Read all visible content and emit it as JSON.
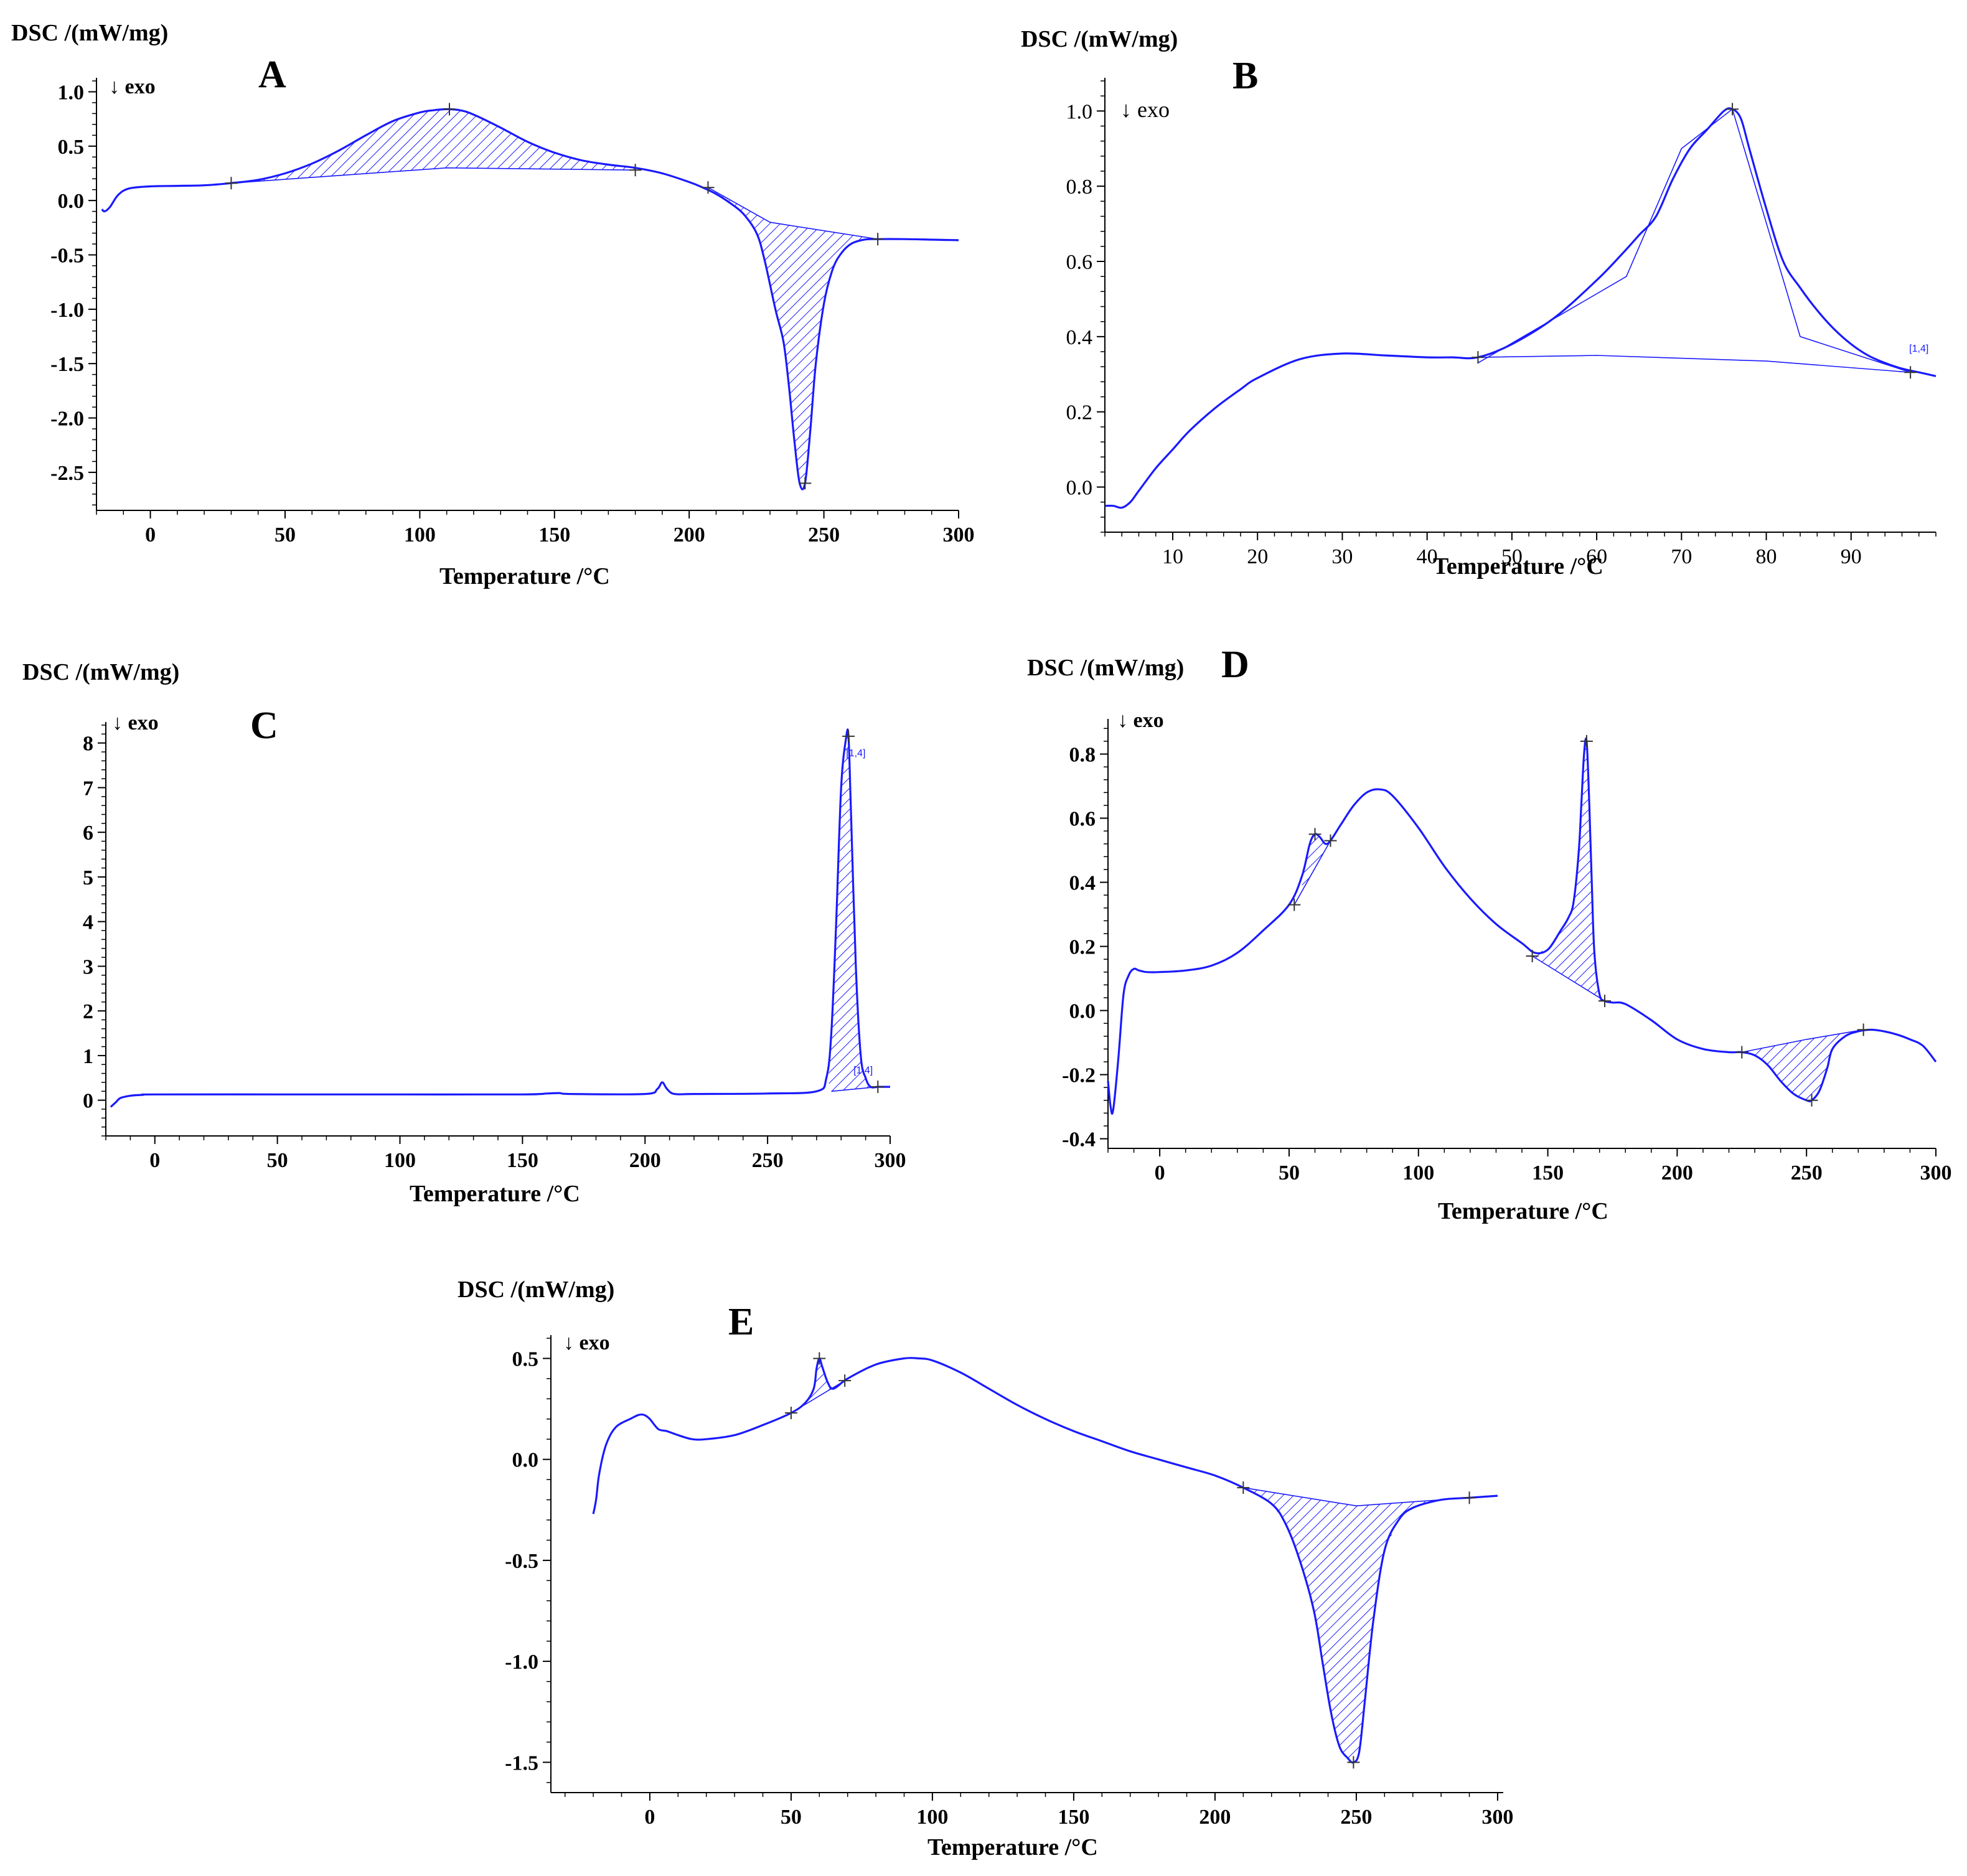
{
  "figure": {
    "colors": {
      "curve": "#1a1aff",
      "hatch": "#1a1aff",
      "axis": "#000000"
    },
    "exo_glyph": "↓"
  },
  "chart_data": [
    {
      "panel": "A",
      "type": "line",
      "title": "",
      "ylabel": "DSC /(mW/mg)",
      "xlabel": "Temperature /°C",
      "exo_label": "exo",
      "xlim": [
        -20,
        300
      ],
      "ylim": [
        -2.85,
        1.1
      ],
      "xticks": [
        "0",
        "50",
        "100",
        "150",
        "200",
        "250",
        "300"
      ],
      "xtick_values": [
        0,
        50,
        100,
        150,
        200,
        250,
        300
      ],
      "yticks": [
        "1.0",
        "0.5",
        "0.0",
        "-0.5",
        "-1.0",
        "-1.5",
        "-2.0",
        "-2.5"
      ],
      "ytick_values": [
        1.0,
        0.5,
        0.0,
        -0.5,
        -1.0,
        -1.5,
        -2.0,
        -2.5
      ],
      "series": [
        {
          "name": "DSC",
          "x": [
            -18,
            -17,
            -15,
            -12,
            -8,
            0,
            10,
            20,
            30,
            40,
            50,
            60,
            70,
            80,
            90,
            100,
            105,
            110,
            115,
            120,
            130,
            140,
            150,
            160,
            170,
            180,
            190,
            200,
            205,
            210,
            215,
            220,
            225,
            228,
            232,
            235,
            237,
            239,
            241,
            243,
            245,
            247,
            250,
            253,
            256,
            260,
            265,
            270,
            280,
            290,
            300
          ],
          "y": [
            -0.08,
            -0.1,
            -0.06,
            0.05,
            0.11,
            0.13,
            0.135,
            0.14,
            0.16,
            0.19,
            0.25,
            0.34,
            0.46,
            0.6,
            0.73,
            0.81,
            0.83,
            0.84,
            0.83,
            0.79,
            0.67,
            0.54,
            0.44,
            0.37,
            0.33,
            0.3,
            0.25,
            0.17,
            0.12,
            0.06,
            -0.02,
            -0.12,
            -0.3,
            -0.55,
            -1.0,
            -1.3,
            -1.7,
            -2.2,
            -2.6,
            -2.6,
            -2.1,
            -1.5,
            -0.95,
            -0.65,
            -0.5,
            -0.4,
            -0.36,
            -0.355,
            -0.355,
            -0.36,
            -0.365
          ]
        }
      ],
      "baselines": [
        {
          "x": [
            30,
            110,
            180
          ],
          "y": [
            0.16,
            0.3,
            0.28
          ]
        },
        {
          "x": [
            207,
            230,
            270
          ],
          "y": [
            0.12,
            -0.2,
            -0.355
          ]
        }
      ],
      "markers": [
        {
          "x": 30,
          "y": 0.16
        },
        {
          "x": 111,
          "y": 0.84
        },
        {
          "x": 180,
          "y": 0.28
        },
        {
          "x": 207,
          "y": 0.12
        },
        {
          "x": 243,
          "y": -2.6
        },
        {
          "x": 270,
          "y": -0.355
        }
      ],
      "shaded": [
        {
          "from": 30,
          "to": 180,
          "baseline": 0
        },
        {
          "from": 207,
          "to": 270,
          "baseline": 1
        }
      ],
      "annotations": []
    },
    {
      "panel": "B",
      "type": "line",
      "title": "",
      "ylabel": "DSC /(mW/mg)",
      "xlabel": "Temperature /°C",
      "exo_label": "exo",
      "xlim": [
        2,
        100
      ],
      "ylim": [
        -0.12,
        1.08
      ],
      "xticks": [
        "10",
        "20",
        "30",
        "40",
        "50",
        "60",
        "70",
        "80",
        "90"
      ],
      "xtick_values": [
        10,
        20,
        30,
        40,
        50,
        60,
        70,
        80,
        90
      ],
      "yticks": [
        "1.0",
        "0.8",
        "0.6",
        "0.4",
        "0.2",
        "0.0"
      ],
      "ytick_values": [
        1.0,
        0.8,
        0.6,
        0.4,
        0.2,
        0.0
      ],
      "series": [
        {
          "name": "DSC",
          "x": [
            2,
            3,
            4,
            5,
            6,
            8,
            10,
            12,
            15,
            18,
            20,
            25,
            30,
            35,
            40,
            43,
            46,
            50,
            55,
            60,
            63,
            65,
            67,
            69,
            71,
            73,
            75,
            76,
            77,
            78,
            80,
            82,
            84,
            86,
            88,
            90,
            92,
            94,
            96,
            98,
            100
          ],
          "y": [
            -0.05,
            -0.05,
            -0.055,
            -0.04,
            -0.01,
            0.05,
            0.1,
            0.15,
            0.21,
            0.26,
            0.29,
            0.34,
            0.355,
            0.35,
            0.345,
            0.345,
            0.345,
            0.38,
            0.45,
            0.55,
            0.62,
            0.67,
            0.72,
            0.82,
            0.9,
            0.95,
            1.0,
            1.005,
            0.98,
            0.9,
            0.74,
            0.6,
            0.53,
            0.47,
            0.42,
            0.38,
            0.35,
            0.33,
            0.315,
            0.305,
            0.295
          ]
        }
      ],
      "baselines": [
        {
          "x": [
            46,
            60,
            80,
            97
          ],
          "y": [
            0.345,
            0.35,
            0.335,
            0.305
          ]
        },
        {
          "x": [
            46,
            63.5,
            70,
            76,
            84,
            97
          ],
          "y": [
            0.33,
            0.56,
            0.9,
            1.005,
            0.4,
            0.305
          ]
        }
      ],
      "markers": [
        {
          "x": 46,
          "y": 0.345
        },
        {
          "x": 76,
          "y": 1.005
        },
        {
          "x": 97,
          "y": 0.305
        }
      ],
      "shaded": [],
      "annotations": [
        {
          "x": 98,
          "y": 0.36,
          "text": "[1,4]"
        }
      ]
    },
    {
      "panel": "C",
      "type": "line",
      "title": "",
      "ylabel": "DSC /(mW/mg)",
      "xlabel": "Temperature /°C",
      "exo_label": "exo",
      "xlim": [
        -20,
        300
      ],
      "ylim": [
        -0.8,
        8.4
      ],
      "xticks": [
        "0",
        "50",
        "100",
        "150",
        "200",
        "250",
        "300"
      ],
      "xtick_values": [
        0,
        50,
        100,
        150,
        200,
        250,
        300
      ],
      "yticks": [
        "8",
        "7",
        "6",
        "5",
        "4",
        "3",
        "2",
        "1",
        "0"
      ],
      "ytick_values": [
        8,
        7,
        6,
        5,
        4,
        3,
        2,
        1,
        0
      ],
      "series": [
        {
          "name": "DSC",
          "x": [
            -18,
            -16,
            -14,
            -10,
            -5,
            0,
            50,
            100,
            150,
            160,
            165,
            170,
            200,
            205,
            207,
            209,
            212,
            220,
            250,
            270,
            274,
            276,
            278,
            280,
            282,
            283,
            284,
            286,
            288,
            290,
            292,
            295,
            298,
            300
          ],
          "y": [
            -0.15,
            -0.05,
            0.05,
            0.1,
            0.12,
            0.13,
            0.13,
            0.13,
            0.13,
            0.15,
            0.16,
            0.14,
            0.14,
            0.25,
            0.4,
            0.25,
            0.14,
            0.14,
            0.15,
            0.2,
            0.5,
            1.5,
            4.0,
            7.0,
            8.1,
            8.15,
            6.5,
            3.0,
            1.0,
            0.5,
            0.3,
            0.3,
            0.3,
            0.3
          ]
        }
      ],
      "baselines": [
        {
          "x": [
            276,
            295
          ],
          "y": [
            0.2,
            0.3
          ]
        }
      ],
      "markers": [
        {
          "x": 283,
          "y": 8.15
        },
        {
          "x": 295,
          "y": 0.3
        }
      ],
      "shaded": [
        {
          "from": 275,
          "to": 294,
          "baseline": 0
        }
      ],
      "annotations": [
        {
          "x": 286,
          "y": 7.7,
          "text": "[1,4]"
        },
        {
          "x": 289,
          "y": 0.6,
          "text": "[1,4]"
        }
      ]
    },
    {
      "panel": "D",
      "type": "line",
      "title": "",
      "ylabel": "DSC /(mW/mg)",
      "xlabel": "Temperature /°C",
      "exo_label": "exo",
      "xlim": [
        -20,
        300
      ],
      "ylim": [
        -0.43,
        0.9
      ],
      "xticks": [
        "0",
        "50",
        "100",
        "150",
        "200",
        "250",
        "300"
      ],
      "xtick_values": [
        0,
        50,
        100,
        150,
        200,
        250,
        300
      ],
      "yticks": [
        "0.8",
        "0.6",
        "0.4",
        "0.2",
        "0.0",
        "-0.2",
        "-0.4"
      ],
      "ytick_values": [
        0.8,
        0.6,
        0.4,
        0.2,
        0.0,
        -0.2,
        -0.4
      ],
      "series": [
        {
          "name": "DSC",
          "x": [
            -20,
            -19,
            -18,
            -16,
            -14,
            -12,
            -10,
            -8,
            -5,
            0,
            10,
            20,
            30,
            40,
            50,
            55,
            58,
            60,
            62,
            64,
            66,
            70,
            75,
            80,
            85,
            90,
            100,
            110,
            120,
            130,
            140,
            145,
            150,
            155,
            158,
            160,
            162,
            163,
            164,
            165,
            166,
            167,
            168,
            170,
            172,
            175,
            180,
            190,
            200,
            210,
            220,
            225,
            230,
            235,
            240,
            245,
            250,
            252,
            255,
            258,
            260,
            265,
            270,
            275,
            280,
            285,
            290,
            295,
            300
          ],
          "y": [
            -0.22,
            -0.3,
            -0.31,
            -0.15,
            0.05,
            0.11,
            0.13,
            0.125,
            0.12,
            0.12,
            0.125,
            0.14,
            0.18,
            0.25,
            0.33,
            0.42,
            0.52,
            0.55,
            0.54,
            0.52,
            0.53,
            0.58,
            0.64,
            0.68,
            0.69,
            0.67,
            0.57,
            0.45,
            0.35,
            0.27,
            0.21,
            0.18,
            0.19,
            0.25,
            0.29,
            0.34,
            0.5,
            0.65,
            0.8,
            0.84,
            0.65,
            0.4,
            0.18,
            0.05,
            0.03,
            0.025,
            0.02,
            -0.03,
            -0.09,
            -0.12,
            -0.13,
            -0.13,
            -0.14,
            -0.17,
            -0.22,
            -0.26,
            -0.28,
            -0.28,
            -0.25,
            -0.18,
            -0.12,
            -0.08,
            -0.065,
            -0.06,
            -0.065,
            -0.075,
            -0.09,
            -0.11,
            -0.16
          ]
        }
      ],
      "baselines": [
        {
          "x": [
            52,
            66
          ],
          "y": [
            0.33,
            0.53
          ]
        },
        {
          "x": [
            144,
            172
          ],
          "y": [
            0.17,
            0.03
          ]
        },
        {
          "x": [
            225,
            250,
            272
          ],
          "y": [
            -0.13,
            -0.09,
            -0.06
          ]
        }
      ],
      "markers": [
        {
          "x": 52,
          "y": 0.33
        },
        {
          "x": 60,
          "y": 0.55
        },
        {
          "x": 66,
          "y": 0.53
        },
        {
          "x": 144,
          "y": 0.17
        },
        {
          "x": 165,
          "y": 0.84
        },
        {
          "x": 172,
          "y": 0.03
        },
        {
          "x": 225,
          "y": -0.13
        },
        {
          "x": 252,
          "y": -0.28
        },
        {
          "x": 272,
          "y": -0.06
        }
      ],
      "shaded": [
        {
          "from": 55,
          "to": 66,
          "baseline": 0
        },
        {
          "from": 144,
          "to": 172,
          "baseline": 1
        },
        {
          "from": 225,
          "to": 272,
          "baseline": 2
        }
      ],
      "annotations": []
    },
    {
      "panel": "E",
      "type": "line",
      "title": "",
      "ylabel": "DSC /(mW/mg)",
      "xlabel": "Temperature /°C",
      "exo_label": "exo",
      "xlim": [
        -35,
        302
      ],
      "ylim": [
        -1.65,
        0.6
      ],
      "xticks": [
        "0",
        "50",
        "100",
        "150",
        "200",
        "250",
        "300"
      ],
      "xtick_values": [
        0,
        50,
        100,
        150,
        200,
        250,
        300
      ],
      "yticks": [
        "0.5",
        "0.0",
        "-0.5",
        "-1.0",
        "-1.5"
      ],
      "ytick_values": [
        0.5,
        0.0,
        -0.5,
        -1.0,
        -1.5
      ],
      "series": [
        {
          "name": "DSC",
          "x": [
            -20,
            -19,
            -18,
            -16,
            -14,
            -12,
            -10,
            -7,
            -4,
            -2,
            0,
            3,
            6,
            10,
            15,
            20,
            30,
            40,
            50,
            55,
            58,
            59,
            60,
            61,
            63,
            65,
            70,
            80,
            90,
            95,
            100,
            110,
            120,
            130,
            140,
            150,
            160,
            170,
            180,
            190,
            200,
            210,
            220,
            225,
            230,
            235,
            238,
            241,
            244,
            247,
            249,
            251,
            253,
            256,
            260,
            265,
            270,
            280,
            290,
            300
          ],
          "y": [
            -0.27,
            -0.2,
            -0.08,
            0.05,
            0.12,
            0.16,
            0.18,
            0.2,
            0.22,
            0.22,
            0.2,
            0.15,
            0.14,
            0.12,
            0.1,
            0.1,
            0.12,
            0.17,
            0.23,
            0.28,
            0.35,
            0.45,
            0.5,
            0.46,
            0.38,
            0.35,
            0.4,
            0.47,
            0.5,
            0.5,
            0.49,
            0.43,
            0.35,
            0.27,
            0.2,
            0.14,
            0.09,
            0.04,
            0.0,
            -0.04,
            -0.08,
            -0.14,
            -0.22,
            -0.32,
            -0.5,
            -0.75,
            -1.0,
            -1.25,
            -1.42,
            -1.48,
            -1.5,
            -1.45,
            -1.2,
            -0.8,
            -0.45,
            -0.3,
            -0.24,
            -0.2,
            -0.19,
            -0.18
          ]
        }
      ],
      "baselines": [
        {
          "x": [
            50,
            69
          ],
          "y": [
            0.23,
            0.39
          ]
        },
        {
          "x": [
            210,
            250,
            290
          ],
          "y": [
            -0.14,
            -0.23,
            -0.19
          ]
        }
      ],
      "markers": [
        {
          "x": 50,
          "y": 0.23
        },
        {
          "x": 60,
          "y": 0.5
        },
        {
          "x": 69,
          "y": 0.39
        },
        {
          "x": 210,
          "y": -0.14
        },
        {
          "x": 249,
          "y": -1.5
        },
        {
          "x": 290,
          "y": -0.19
        }
      ],
      "shaded": [
        {
          "from": 54,
          "to": 66,
          "baseline": 0
        },
        {
          "from": 210,
          "to": 290,
          "baseline": 1
        }
      ],
      "annotations": []
    }
  ]
}
